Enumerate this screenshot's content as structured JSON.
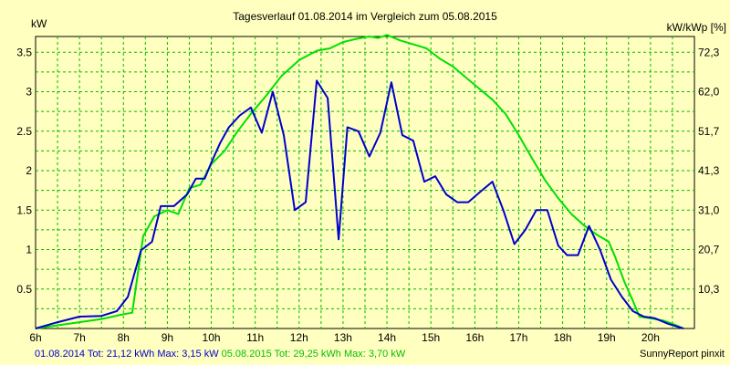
{
  "chart_data": {
    "type": "line",
    "title": "Tagesverlauf 01.08.2014 im Vergleich zum 05.08.2015",
    "ylabel_left": "kW",
    "ylabel_right": "kW/kWp [%]",
    "xlim": [
      6,
      21
    ],
    "ylim": [
      0,
      3.7
    ],
    "grid": true,
    "x_ticks": [
      {
        "x": 6,
        "label": "6h"
      },
      {
        "x": 7,
        "label": "7h"
      },
      {
        "x": 8,
        "label": "8h"
      },
      {
        "x": 9,
        "label": "9h"
      },
      {
        "x": 10,
        "label": "10h"
      },
      {
        "x": 11,
        "label": "11h"
      },
      {
        "x": 12,
        "label": "12h"
      },
      {
        "x": 13,
        "label": "13h"
      },
      {
        "x": 14,
        "label": "14h"
      },
      {
        "x": 15,
        "label": "15h"
      },
      {
        "x": 16,
        "label": "16h"
      },
      {
        "x": 17,
        "label": "17h"
      },
      {
        "x": 18,
        "label": "18h"
      },
      {
        "x": 19,
        "label": "19h"
      },
      {
        "x": 20,
        "label": "20h"
      }
    ],
    "y_ticks_left": [
      {
        "y": 0.5,
        "label": "0.5"
      },
      {
        "y": 1,
        "label": "1"
      },
      {
        "y": 1.5,
        "label": "1.5"
      },
      {
        "y": 2,
        "label": "2"
      },
      {
        "y": 2.5,
        "label": "2.5"
      },
      {
        "y": 3,
        "label": "3"
      },
      {
        "y": 3.5,
        "label": "3.5"
      }
    ],
    "y_ticks_right": [
      {
        "y": 0.5,
        "label": "10,3"
      },
      {
        "y": 1,
        "label": "20,7"
      },
      {
        "y": 1.5,
        "label": "31,0"
      },
      {
        "y": 2,
        "label": "41,3"
      },
      {
        "y": 2.5,
        "label": "51,7"
      },
      {
        "y": 3,
        "label": "62,0"
      },
      {
        "y": 3.5,
        "label": "72,3"
      }
    ],
    "series": [
      {
        "color": "#0000cc",
        "points": [
          [
            6.0,
            0.0
          ],
          [
            6.5,
            0.08
          ],
          [
            7.0,
            0.15
          ],
          [
            7.5,
            0.16
          ],
          [
            7.85,
            0.22
          ],
          [
            8.1,
            0.4
          ],
          [
            8.4,
            0.99
          ],
          [
            8.65,
            1.1
          ],
          [
            8.85,
            1.55
          ],
          [
            9.15,
            1.55
          ],
          [
            9.45,
            1.7
          ],
          [
            9.65,
            1.9
          ],
          [
            9.85,
            1.9
          ],
          [
            10.0,
            2.1
          ],
          [
            10.2,
            2.35
          ],
          [
            10.4,
            2.55
          ],
          [
            10.65,
            2.7
          ],
          [
            10.9,
            2.8
          ],
          [
            11.15,
            2.48
          ],
          [
            11.4,
            3.0
          ],
          [
            11.65,
            2.45
          ],
          [
            11.9,
            1.5
          ],
          [
            12.15,
            1.6
          ],
          [
            12.4,
            3.14
          ],
          [
            12.65,
            2.92
          ],
          [
            12.9,
            1.13
          ],
          [
            13.1,
            2.55
          ],
          [
            13.35,
            2.5
          ],
          [
            13.6,
            2.18
          ],
          [
            13.85,
            2.48
          ],
          [
            14.1,
            3.12
          ],
          [
            14.35,
            2.45
          ],
          [
            14.6,
            2.38
          ],
          [
            14.85,
            1.86
          ],
          [
            15.1,
            1.93
          ],
          [
            15.35,
            1.7
          ],
          [
            15.6,
            1.6
          ],
          [
            15.85,
            1.6
          ],
          [
            16.1,
            1.72
          ],
          [
            16.4,
            1.86
          ],
          [
            16.65,
            1.5
          ],
          [
            16.9,
            1.07
          ],
          [
            17.15,
            1.25
          ],
          [
            17.4,
            1.5
          ],
          [
            17.65,
            1.5
          ],
          [
            17.9,
            1.05
          ],
          [
            18.1,
            0.93
          ],
          [
            18.35,
            0.93
          ],
          [
            18.6,
            1.3
          ],
          [
            18.85,
            1.0
          ],
          [
            19.1,
            0.62
          ],
          [
            19.35,
            0.4
          ],
          [
            19.6,
            0.22
          ],
          [
            19.85,
            0.15
          ],
          [
            20.1,
            0.13
          ],
          [
            20.4,
            0.06
          ],
          [
            20.75,
            0.0
          ]
        ]
      },
      {
        "color": "#00e000",
        "points": [
          [
            6.0,
            0.0
          ],
          [
            6.5,
            0.04
          ],
          [
            7.0,
            0.08
          ],
          [
            7.5,
            0.12
          ],
          [
            8.0,
            0.18
          ],
          [
            8.2,
            0.2
          ],
          [
            8.45,
            1.17
          ],
          [
            8.7,
            1.42
          ],
          [
            9.0,
            1.5
          ],
          [
            9.25,
            1.45
          ],
          [
            9.5,
            1.78
          ],
          [
            9.75,
            1.82
          ],
          [
            10.0,
            2.08
          ],
          [
            10.3,
            2.25
          ],
          [
            10.6,
            2.5
          ],
          [
            10.9,
            2.72
          ],
          [
            11.25,
            2.95
          ],
          [
            11.6,
            3.2
          ],
          [
            12.0,
            3.4
          ],
          [
            12.4,
            3.52
          ],
          [
            12.7,
            3.55
          ],
          [
            13.0,
            3.63
          ],
          [
            13.3,
            3.67
          ],
          [
            13.6,
            3.7
          ],
          [
            13.8,
            3.68
          ],
          [
            14.0,
            3.72
          ],
          [
            14.3,
            3.65
          ],
          [
            14.6,
            3.6
          ],
          [
            14.9,
            3.55
          ],
          [
            15.2,
            3.42
          ],
          [
            15.5,
            3.32
          ],
          [
            15.8,
            3.18
          ],
          [
            16.1,
            3.04
          ],
          [
            16.4,
            2.9
          ],
          [
            16.7,
            2.72
          ],
          [
            17.0,
            2.45
          ],
          [
            17.3,
            2.16
          ],
          [
            17.6,
            1.88
          ],
          [
            17.9,
            1.65
          ],
          [
            18.2,
            1.45
          ],
          [
            18.5,
            1.3
          ],
          [
            18.8,
            1.18
          ],
          [
            19.05,
            1.1
          ],
          [
            19.2,
            0.9
          ],
          [
            19.4,
            0.6
          ],
          [
            19.6,
            0.35
          ],
          [
            19.75,
            0.15
          ],
          [
            20.0,
            0.13
          ],
          [
            20.3,
            0.1
          ],
          [
            20.55,
            0.05
          ],
          [
            20.75,
            0.0
          ]
        ]
      }
    ]
  },
  "footer": {
    "series1_stats": "01.08.2014 Tot: 21,12 kWh Max: 3,15 kW",
    "series2_stats": "05.08.2015 Tot: 29,25 kWh Max: 3,70 kW",
    "brand": "SunnyReport pinxit",
    "series1_color": "#0000cc",
    "series2_color": "#00c000"
  }
}
